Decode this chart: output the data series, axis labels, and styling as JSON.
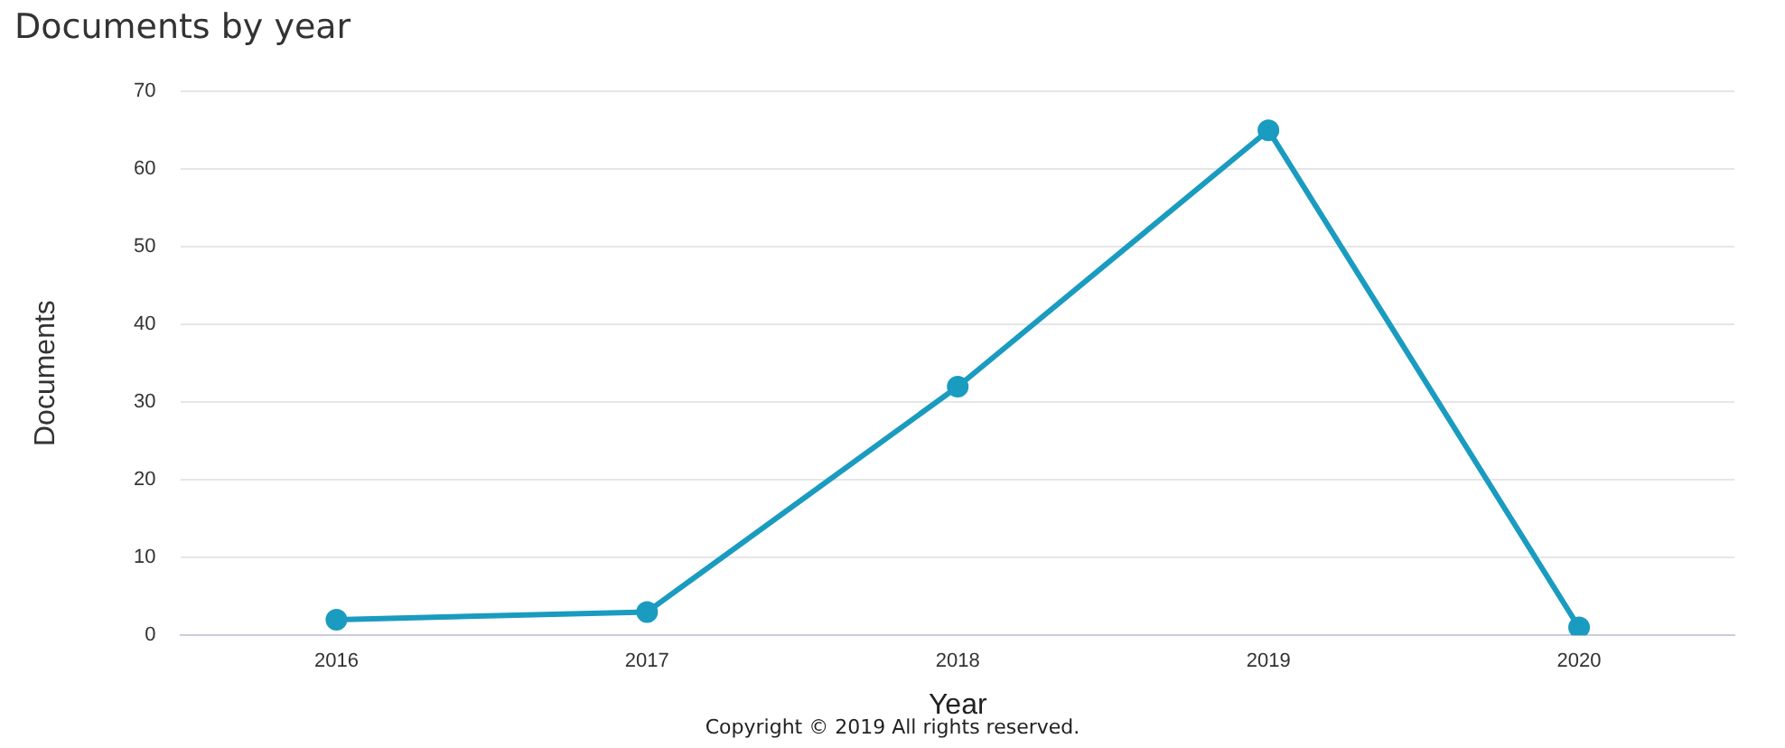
{
  "chart_data": {
    "type": "line",
    "title": "Documents by year",
    "xlabel": "Year",
    "ylabel": "Documents",
    "categories": [
      "2016",
      "2017",
      "2018",
      "2019",
      "2020"
    ],
    "series": [
      {
        "color": "#1a9bc0",
        "values": [
          2,
          3,
          32,
          65,
          1
        ]
      }
    ],
    "ylim": [
      0,
      70
    ],
    "yticks": [
      0,
      10,
      20,
      30,
      40,
      50,
      60,
      70
    ],
    "grid": "y",
    "legend": false,
    "marker": "circle",
    "line_style": "solid",
    "annotations": [
      "Copyright © 2019 All rights reserved."
    ]
  }
}
